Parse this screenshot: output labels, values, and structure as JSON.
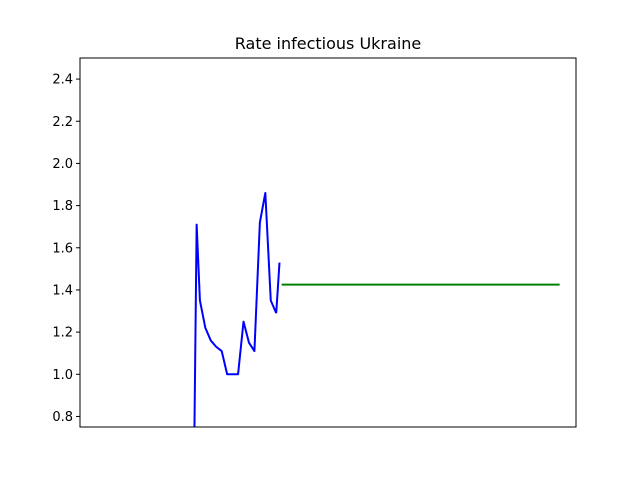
{
  "chart_data": {
    "type": "line",
    "title": "Rate infectious Ukraine",
    "xlabel": "",
    "ylabel": "",
    "xlim": [
      -3,
      88
    ],
    "ylim": [
      0.75,
      2.5
    ],
    "y_ticks": [
      "0.8",
      "1.0",
      "1.2",
      "1.4",
      "1.6",
      "1.8",
      "2.0",
      "2.2",
      "2.4"
    ],
    "y_tick_values": [
      0.8,
      1.0,
      1.2,
      1.4,
      1.6,
      1.8,
      2.0,
      2.2,
      2.4
    ],
    "x_ticks_visible": false,
    "grid": false,
    "series": [
      {
        "color": "#0000ff",
        "x": [
          18.0,
          18.4,
          19,
          20,
          21,
          22,
          23,
          24,
          25,
          26,
          27,
          28,
          29,
          30,
          31,
          32,
          33
        ],
        "y": [
          0.75,
          1.71,
          1.35,
          1.22,
          1.16,
          1.13,
          1.11,
          1.0,
          1.0,
          1.0,
          1.25,
          1.15,
          1.11,
          1.72,
          1.86,
          1.35,
          1.29
        ]
      },
      {
        "color": "#0000ff",
        "x": [
          33,
          33.6
        ],
        "y": [
          1.29,
          1.53
        ]
      },
      {
        "color": "#008000",
        "x": [
          34,
          85
        ],
        "y": [
          1.425,
          1.425
        ]
      }
    ]
  }
}
